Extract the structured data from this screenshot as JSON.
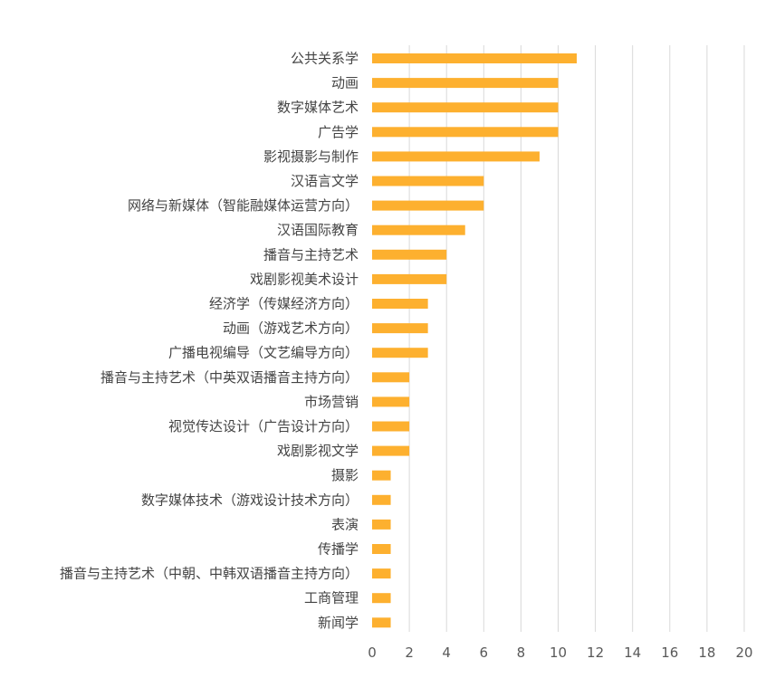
{
  "chart_data": {
    "type": "bar",
    "orientation": "horizontal",
    "categories": [
      "公共关系学",
      "动画",
      "数字媒体艺术",
      "广告学",
      "影视摄影与制作",
      "汉语言文学",
      "网络与新媒体（智能融媒体运营方向）",
      "汉语国际教育",
      "播音与主持艺术",
      "戏剧影视美术设计",
      "经济学（传媒经济方向）",
      "动画（游戏艺术方向）",
      "广播电视编导（文艺编导方向）",
      "播音与主持艺术（中英双语播音主持方向）",
      "市场营销",
      "视觉传达设计（广告设计方向）",
      "戏剧影视文学",
      "摄影",
      "数字媒体技术（游戏设计技术方向）",
      "表演",
      "传播学",
      "播音与主持艺术（中朝、中韩双语播音主持方向）",
      "工商管理",
      "新闻学"
    ],
    "values": [
      11,
      10,
      10,
      10,
      9,
      6,
      6,
      5,
      4,
      4,
      3,
      3,
      3,
      2,
      2,
      2,
      2,
      1,
      1,
      1,
      1,
      1,
      1,
      1
    ],
    "xlim": [
      0,
      20
    ],
    "xticks": [
      "0",
      "2",
      "4",
      "6",
      "8",
      "10",
      "12",
      "14",
      "16",
      "18",
      "20"
    ],
    "title": "",
    "xlabel": "",
    "ylabel": "",
    "grid": "vertical",
    "legend": "none",
    "bar_color": "#FDB02F"
  }
}
